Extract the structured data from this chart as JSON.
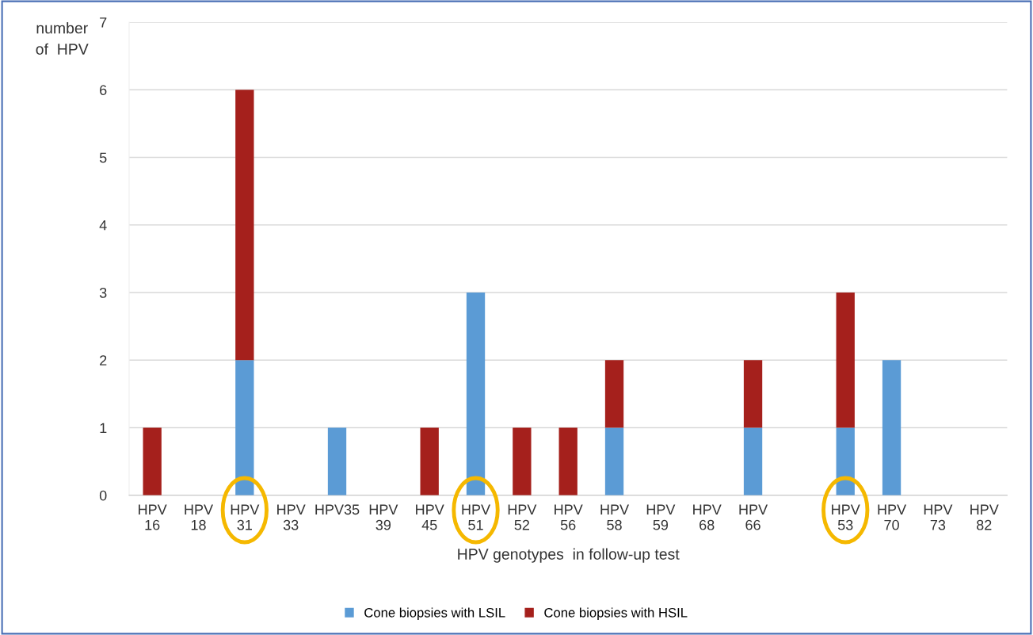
{
  "chart_data": {
    "type": "bar",
    "stacked": true,
    "xlabel": "HPV genotypes  in follow-up test",
    "ylabel": "number\nof  HPV",
    "categories": [
      "HPV\n16",
      "HPV\n18",
      "HPV\n31",
      "HPV\n33",
      "HPV35",
      "HPV\n39",
      "HPV\n45",
      "HPV\n51",
      "HPV\n52",
      "HPV\n56",
      "HPV\n58",
      "HPV\n59",
      "HPV\n68",
      "HPV\n66",
      null,
      "HPV\n53",
      "HPV\n70",
      "HPV\n73",
      "HPV\n82"
    ],
    "series": [
      {
        "name": "Cone biopsies with LSIL",
        "color": "#5b9bd5",
        "values": [
          0,
          0,
          2,
          0,
          1,
          0,
          0,
          3,
          0,
          0,
          1,
          0,
          0,
          1,
          0,
          1,
          2,
          0,
          0
        ]
      },
      {
        "name": "Cone biopsies with HSIL",
        "color": "#a5201c",
        "values": [
          1,
          0,
          4,
          0,
          0,
          0,
          1,
          0,
          1,
          1,
          1,
          0,
          0,
          1,
          0,
          2,
          0,
          0,
          0
        ]
      }
    ],
    "ylim": [
      0,
      7
    ],
    "yticks": [
      0,
      1,
      2,
      3,
      4,
      5,
      6,
      7
    ],
    "grid": "y",
    "legend": "bottom"
  }
}
